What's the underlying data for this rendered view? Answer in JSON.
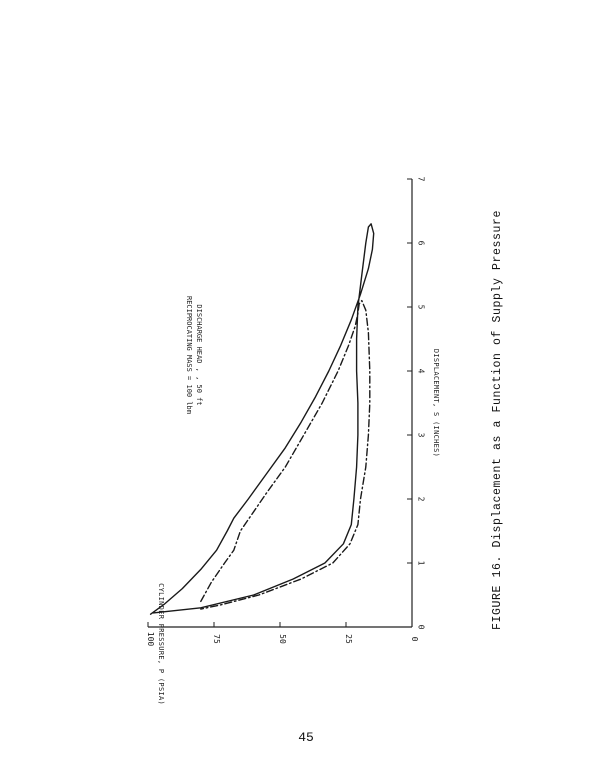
{
  "chart_data": {
    "type": "line",
    "title": "",
    "xlabel": "DISPLACEMENT, S (INCHES)",
    "ylabel": "CYLINDER PRESSURE, P (PSIA)",
    "xlim": [
      0,
      7
    ],
    "ylim": [
      0,
      100
    ],
    "x_ticks": [
      "0",
      "1",
      "2",
      "3",
      "4",
      "5",
      "6",
      "7"
    ],
    "y_ticks": [
      "0",
      "25",
      "50",
      "75",
      "100"
    ],
    "rotated": true,
    "grid": false,
    "annotations": [
      "RECIPROCATING MASS  =  100 lbm",
      "DISCHARGE HEAD  ,  ,  50 ft"
    ],
    "series": [
      {
        "style": "solid",
        "points": [
          [
            0.2,
            99
          ],
          [
            0.35,
            94
          ],
          [
            0.6,
            87
          ],
          [
            0.9,
            80
          ],
          [
            1.2,
            74
          ],
          [
            1.5,
            70
          ],
          [
            1.7,
            67.5
          ],
          [
            2.0,
            62
          ],
          [
            2.4,
            55
          ],
          [
            2.8,
            48
          ],
          [
            3.2,
            42
          ],
          [
            3.6,
            36.5
          ],
          [
            4.0,
            31.5
          ],
          [
            4.4,
            27
          ],
          [
            4.8,
            23
          ],
          [
            5.2,
            19.5
          ],
          [
            5.6,
            16.5
          ],
          [
            5.9,
            15
          ],
          [
            6.15,
            14.5
          ],
          [
            6.3,
            15.5
          ],
          [
            6.25,
            16.5
          ],
          [
            6.0,
            17.5
          ],
          [
            5.5,
            19
          ],
          [
            5.0,
            20.5
          ],
          [
            4.5,
            21
          ],
          [
            4.0,
            21
          ],
          [
            3.5,
            20.5
          ],
          [
            3.0,
            20.5
          ],
          [
            2.5,
            21
          ],
          [
            2.0,
            22
          ],
          [
            1.6,
            23
          ],
          [
            1.3,
            26
          ],
          [
            1.0,
            33
          ],
          [
            0.75,
            45
          ],
          [
            0.5,
            60
          ],
          [
            0.3,
            80
          ],
          [
            0.22,
            98
          ]
        ]
      },
      {
        "style": "dash-dot",
        "points": [
          [
            0.4,
            80
          ],
          [
            0.7,
            76
          ],
          [
            1.0,
            71
          ],
          [
            1.2,
            67.5
          ],
          [
            1.5,
            65
          ],
          [
            1.8,
            60
          ],
          [
            2.1,
            55
          ],
          [
            2.5,
            48
          ],
          [
            3.0,
            41
          ],
          [
            3.5,
            34
          ],
          [
            4.0,
            28
          ],
          [
            4.4,
            24
          ],
          [
            4.7,
            21.5
          ],
          [
            4.9,
            20.5
          ],
          [
            5.05,
            20
          ],
          [
            5.1,
            19
          ],
          [
            4.95,
            17.5
          ],
          [
            4.6,
            16.5
          ],
          [
            4.0,
            16
          ],
          [
            3.5,
            16
          ],
          [
            3.0,
            16.5
          ],
          [
            2.5,
            17.5
          ],
          [
            2.0,
            19.5
          ],
          [
            1.6,
            20.5
          ],
          [
            1.3,
            23.5
          ],
          [
            1.0,
            30
          ],
          [
            0.75,
            42
          ],
          [
            0.5,
            58
          ],
          [
            0.35,
            72
          ],
          [
            0.28,
            80
          ]
        ]
      }
    ]
  },
  "caption": "FIGURE 16.  Displacement as a Function of Supply Pressure",
  "page_number": "45"
}
